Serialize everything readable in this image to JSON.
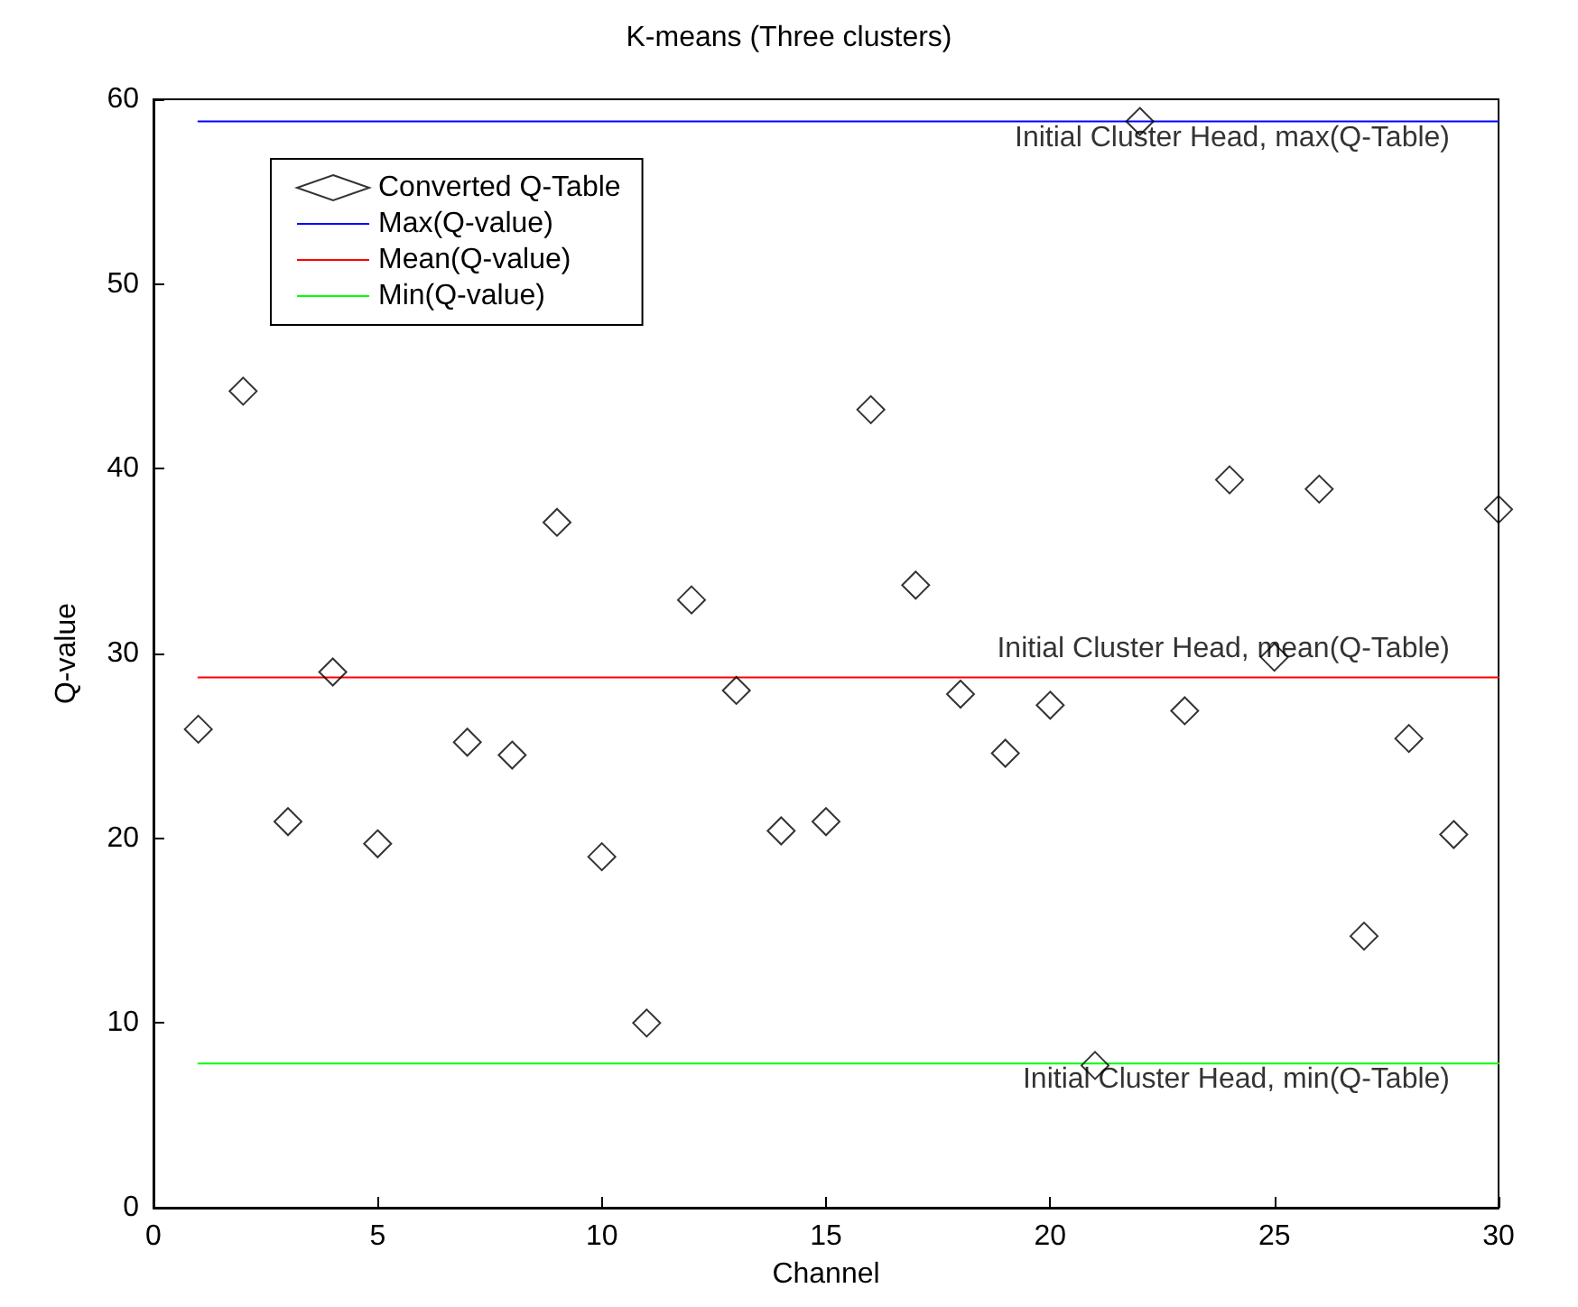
{
  "chart_data": {
    "type": "scatter",
    "title": "K-means (Three clusters)",
    "xlabel": "Channel",
    "ylabel": "Q-value",
    "x": [
      1,
      2,
      3,
      4,
      5,
      6,
      7,
      8,
      9,
      10,
      11,
      12,
      13,
      14,
      15,
      16,
      17,
      18,
      19,
      20,
      21,
      22,
      23,
      24,
      25,
      26,
      27,
      28,
      29,
      30
    ],
    "series": [
      {
        "name": "Converted Q-Table",
        "color": "#000000",
        "marker": "diamond",
        "values": [
          25.9,
          44.2,
          20.9,
          29.0,
          19.7,
          null,
          25.2,
          24.5,
          37.1,
          19.0,
          10.0,
          32.9,
          28.0,
          20.4,
          20.9,
          43.2,
          33.7,
          27.8,
          24.6,
          27.2,
          7.7,
          58.8,
          26.9,
          39.4,
          29.8,
          38.9,
          14.7,
          25.4,
          20.2,
          37.8
        ]
      },
      {
        "name": "Max(Q-value)",
        "type": "line",
        "color": "#0000ff",
        "marker": "none",
        "values": [
          58.8,
          58.8,
          58.8,
          58.8,
          58.8,
          58.8,
          58.8,
          58.8,
          58.8,
          58.8,
          58.8,
          58.8,
          58.8,
          58.8,
          58.8,
          58.8,
          58.8,
          58.8,
          58.8,
          58.8,
          58.8,
          58.8,
          58.8,
          58.8,
          58.8,
          58.8,
          58.8,
          58.8,
          58.8,
          58.8
        ]
      },
      {
        "name": "Mean(Q-value)",
        "type": "line",
        "color": "#ff0000",
        "marker": "none",
        "values": [
          28.7,
          28.7,
          28.7,
          28.7,
          28.7,
          28.7,
          28.7,
          28.7,
          28.7,
          28.7,
          28.7,
          28.7,
          28.7,
          28.7,
          28.7,
          28.7,
          28.7,
          28.7,
          28.7,
          28.7,
          28.7,
          28.7,
          28.7,
          28.7,
          28.7,
          28.7,
          28.7,
          28.7,
          28.7,
          28.7
        ]
      },
      {
        "name": "Min(Q-value)",
        "type": "line",
        "color": "#00ff00",
        "marker": "none",
        "values": [
          7.8,
          7.8,
          7.8,
          7.8,
          7.8,
          7.8,
          7.8,
          7.8,
          7.8,
          7.8,
          7.8,
          7.8,
          7.8,
          7.8,
          7.8,
          7.8,
          7.8,
          7.8,
          7.8,
          7.8,
          7.8,
          7.8,
          7.8,
          7.8,
          7.8,
          7.8,
          7.8,
          7.8,
          7.8,
          7.8
        ]
      }
    ],
    "annotations": [
      "Initial Cluster Head, max(Q-Table)",
      "Initial Cluster Head, mean(Q-Table)",
      "Initial Cluster Head, min(Q-Table)"
    ],
    "xlim": [
      0,
      30
    ],
    "xticks": [
      0,
      5,
      10,
      15,
      20,
      25,
      30
    ],
    "ylim": [
      0,
      60
    ],
    "yticks": [
      0,
      10,
      20,
      30,
      40,
      50,
      60
    ],
    "grid": false,
    "legend": "top left"
  }
}
